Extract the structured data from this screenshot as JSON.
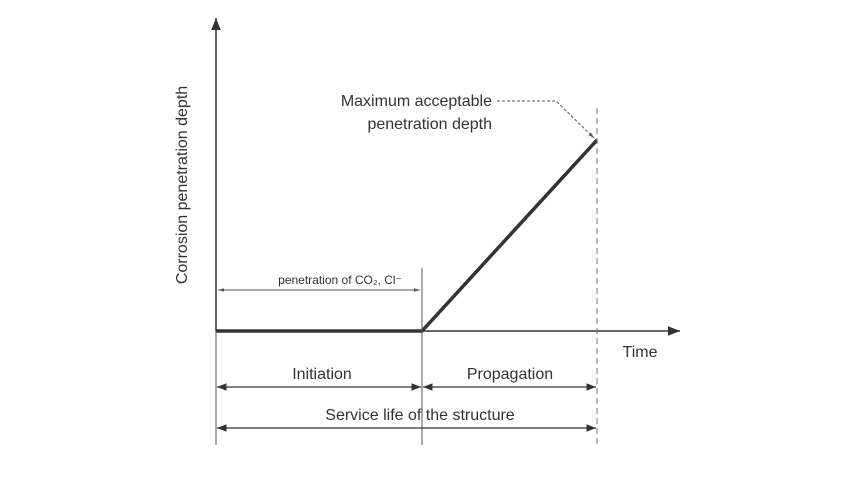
{
  "axes": {
    "y_label": "Corrosion penetration depth",
    "x_label": "Time"
  },
  "annotation": {
    "lines": [
      "Maximum acceptable",
      "penetration depth"
    ]
  },
  "penetration_label": "penetration of CO₂, Cl⁻",
  "phases": {
    "initiation": "Initiation",
    "propagation": "Propagation",
    "service_life": "Service life of the structure"
  }
}
